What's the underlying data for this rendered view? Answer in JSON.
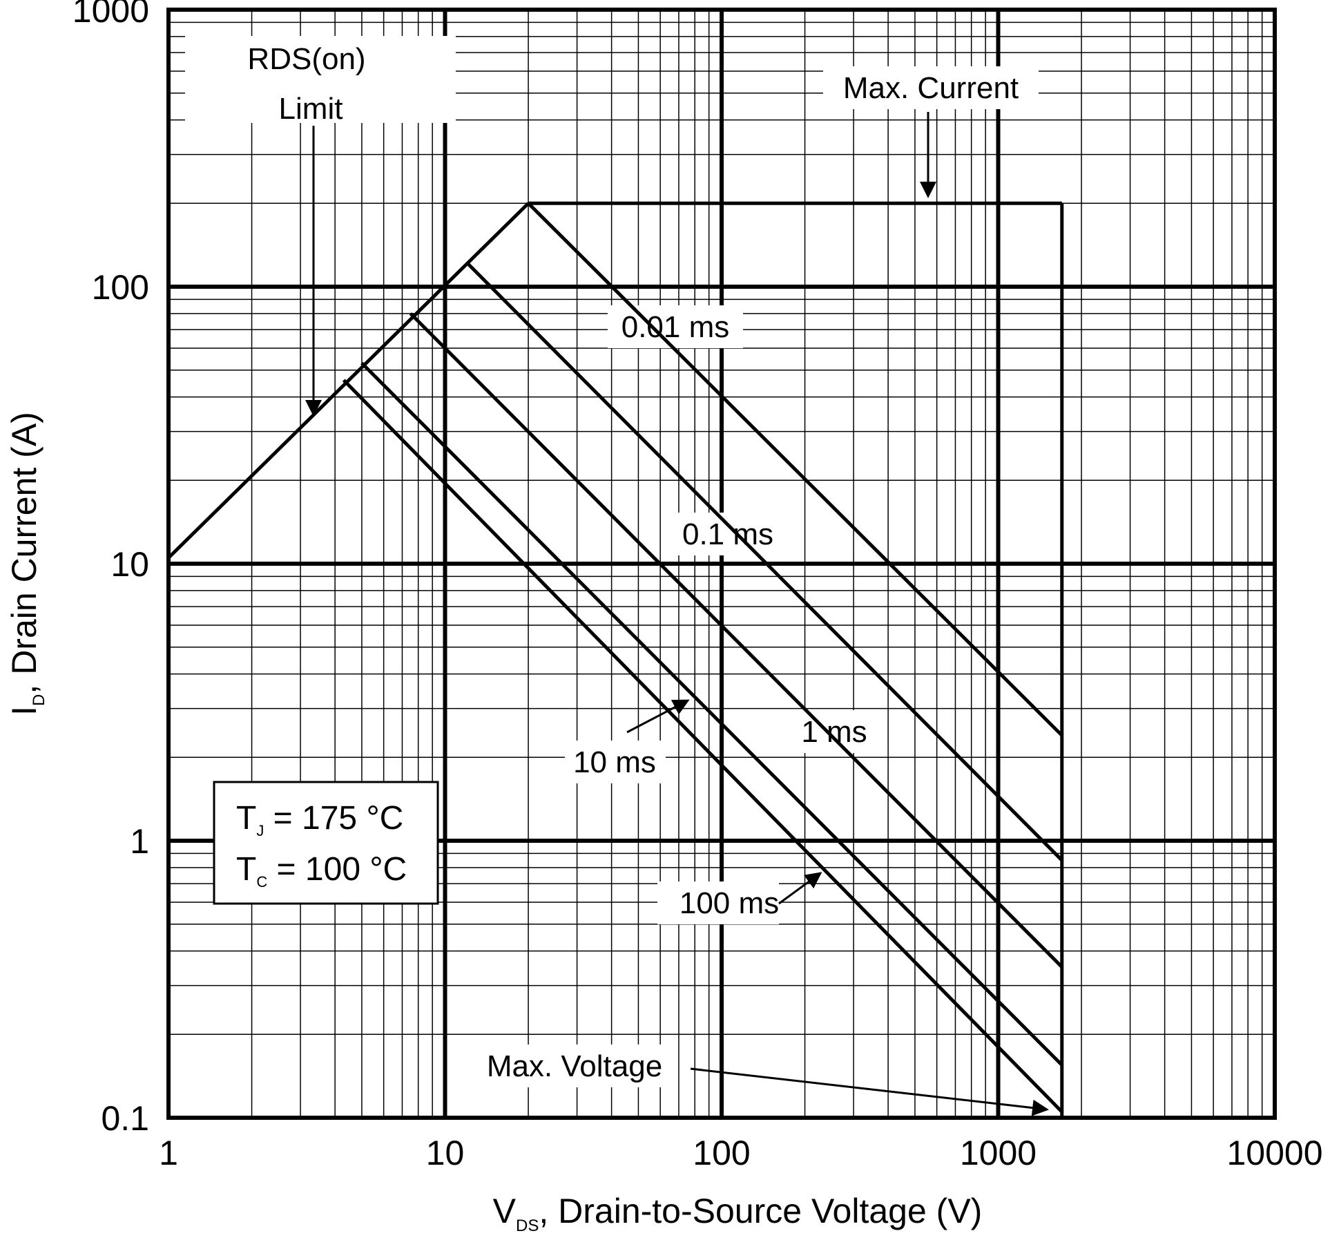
{
  "chart_data": {
    "type": "line",
    "title": "",
    "xscale": "log",
    "yscale": "log",
    "xlim": [
      1,
      10000
    ],
    "ylim": [
      0.1,
      1000
    ],
    "grid": true,
    "x_ticks": [
      "1",
      "10",
      "100",
      "1000",
      "10000"
    ],
    "y_ticks": [
      "0.1",
      "1",
      "10",
      "100",
      "1000"
    ],
    "xlabel": {
      "main": "V",
      "sub": "DS",
      "rest": ", Drain-to-Source Voltage (V)"
    },
    "ylabel": {
      "main": "I",
      "sub": "D",
      "rest": ", Drain Current (A)"
    },
    "series": [
      {
        "label": "RDS(on) Limit",
        "x": [
          1,
          20
        ],
        "y": [
          10.5,
          200
        ]
      },
      {
        "label": "Max. Current",
        "x": [
          20,
          1700
        ],
        "y": [
          200,
          200
        ]
      },
      {
        "label": "Max. Voltage",
        "x": [
          1700,
          1700
        ],
        "y": [
          200,
          0.1
        ]
      },
      {
        "label": "0.01 ms",
        "x": [
          20,
          1700
        ],
        "y": [
          200,
          2.4
        ]
      },
      {
        "label": "0.1 ms",
        "x": [
          12,
          1700
        ],
        "y": [
          122,
          0.85
        ]
      },
      {
        "label": "1 ms",
        "x": [
          7.5,
          1700
        ],
        "y": [
          80,
          0.35
        ]
      },
      {
        "label": "10 ms",
        "x": [
          5,
          1700
        ],
        "y": [
          53,
          0.155
        ]
      },
      {
        "label": "100 ms",
        "x": [
          4.3,
          1700
        ],
        "y": [
          46,
          0.105
        ]
      }
    ],
    "annotations": {
      "rds_line1": "RDS(on)",
      "rds_line2": "Limit",
      "max_current": "Max. Current",
      "max_voltage": "Max. Voltage",
      "t001": "0.01 ms",
      "t01": "0.1 ms",
      "t1": "1 ms",
      "t10": "10 ms",
      "t100": "100 ms"
    },
    "conditions": {
      "tj_main": "T",
      "tj_sub": "J",
      "tj_rest": " = 175 °C",
      "tc_main": "T",
      "tc_sub": "C",
      "tc_rest": " = 100 °C"
    }
  }
}
